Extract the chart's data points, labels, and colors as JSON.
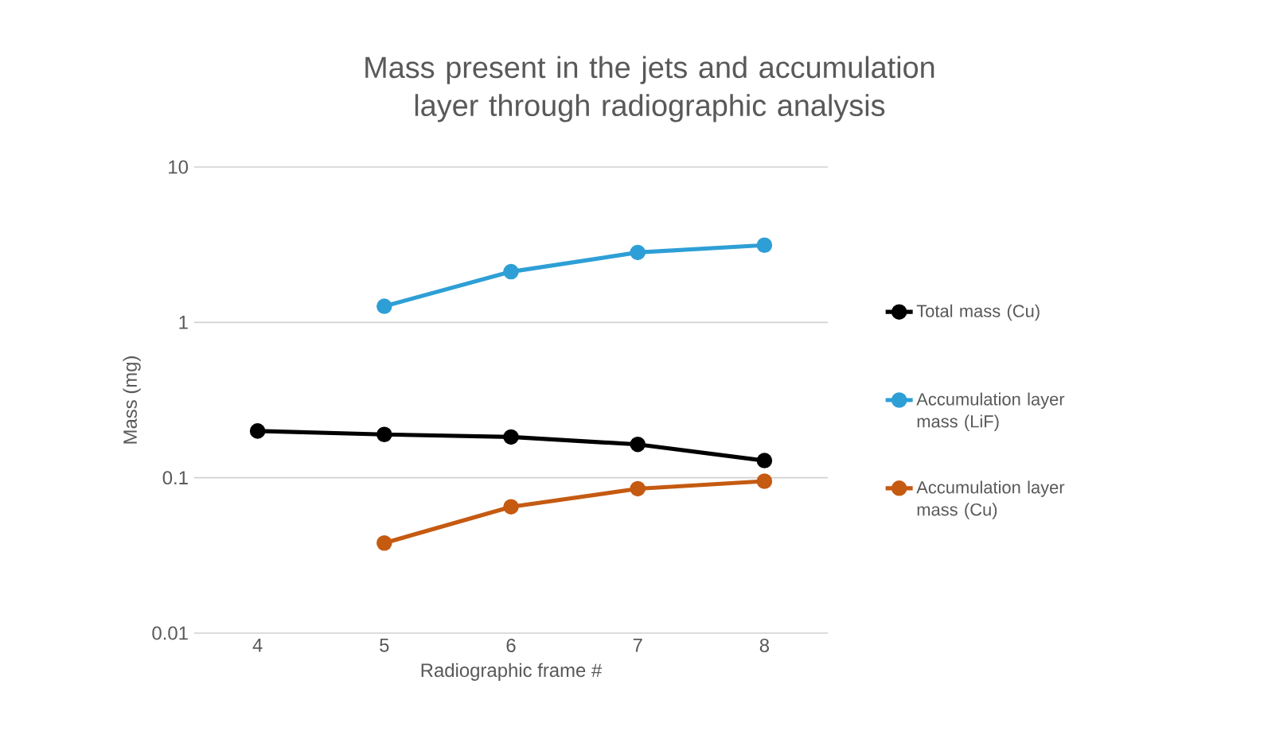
{
  "chart_data": {
    "type": "line",
    "title": "Mass present in the jets and accumulation layer through radiographic analysis",
    "xlabel": "Radiographic frame #",
    "ylabel": "Mass (mg)",
    "categories": [
      "4",
      "5",
      "6",
      "7",
      "8"
    ],
    "series": [
      {
        "name": "Total mass (Cu)",
        "color": "#000000",
        "values": [
          0.2,
          0.19,
          0.183,
          0.164,
          0.129
        ]
      },
      {
        "name": "Accumulation layer mass (LiF)",
        "color": "#2e9fd6",
        "values": [
          null,
          1.27,
          2.12,
          2.82,
          3.14
        ]
      },
      {
        "name": "Accumulation layer mass (Cu)",
        "color": "#c55a11",
        "values": [
          null,
          0.038,
          0.065,
          0.085,
          0.095
        ]
      }
    ],
    "log": "y",
    "ylim": [
      0.01,
      10
    ],
    "yticks": [
      0.01,
      0.1,
      1,
      10
    ],
    "grid": "y",
    "legend": "right",
    "marker": "circle",
    "line_style": "solid"
  }
}
